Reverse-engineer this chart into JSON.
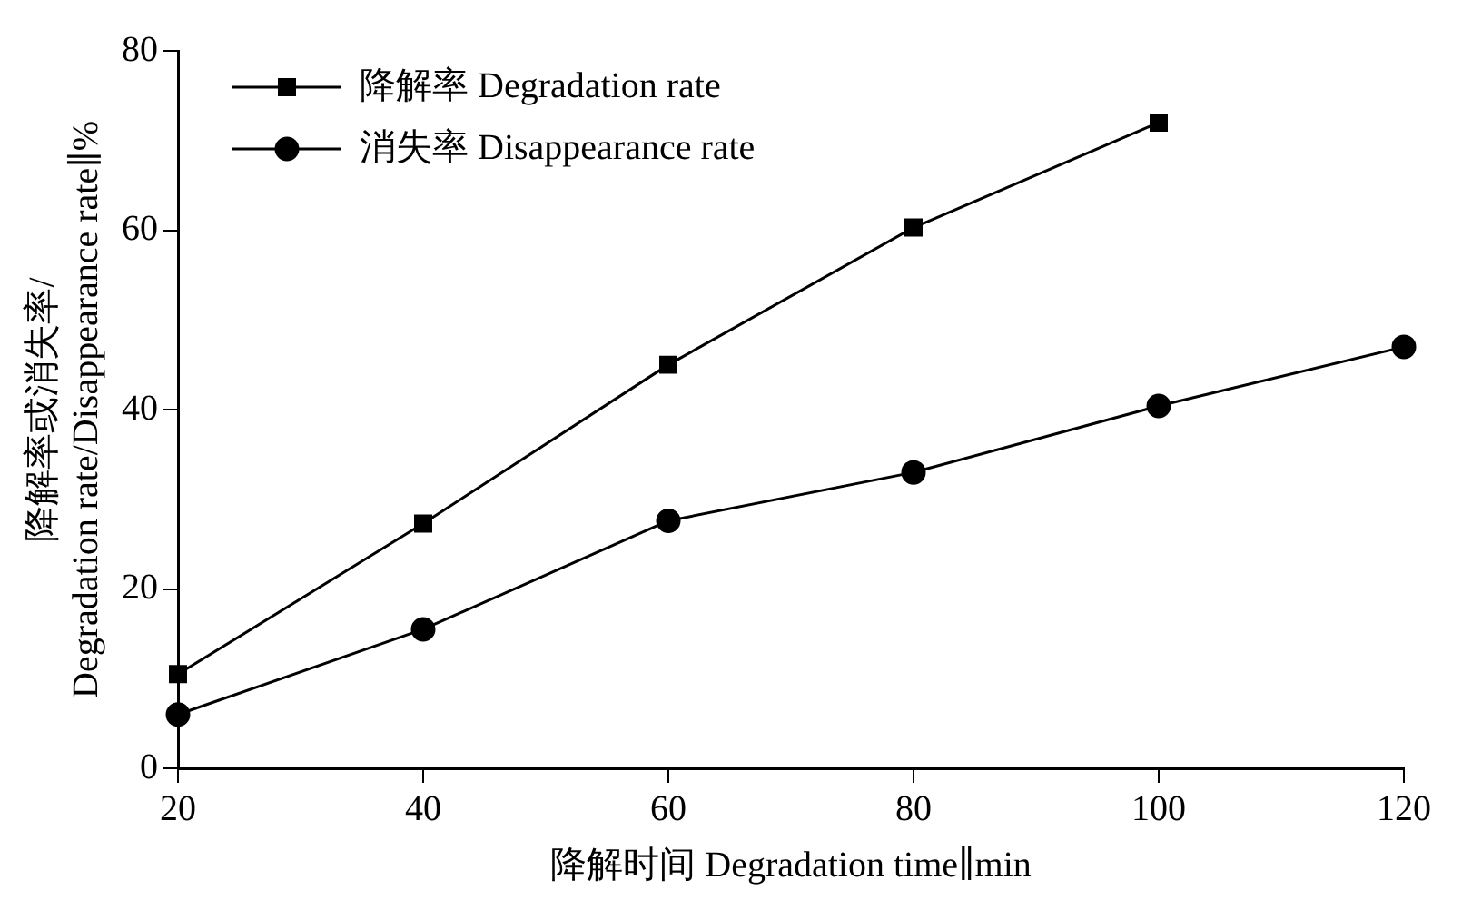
{
  "chart_data": {
    "type": "line",
    "xlabel": "降解时间 Degradation time∥min",
    "ylabel": "降解率或消失率/Degradation rate/Disappearance rate∥%",
    "x": [
      20,
      40,
      60,
      80,
      100,
      120
    ],
    "series": [
      {
        "name": "降解率 Degradation rate",
        "color": "#000000",
        "marker": "square",
        "values": [
          10.5,
          27.3,
          45,
          60.3,
          72,
          null
        ]
      },
      {
        "name": "消失率 Disappearance rate",
        "color": "#000000",
        "marker": "circle",
        "values": [
          6,
          15.5,
          27.6,
          33,
          40.4,
          47
        ]
      }
    ],
    "xlim": [
      20,
      120
    ],
    "xticks": [
      20,
      40,
      60,
      80,
      100,
      120
    ],
    "ylim": [
      0,
      80
    ],
    "yticks": [
      0,
      20,
      40,
      60,
      80
    ],
    "grid": false,
    "legend": "top left",
    "line_style": "solid"
  }
}
